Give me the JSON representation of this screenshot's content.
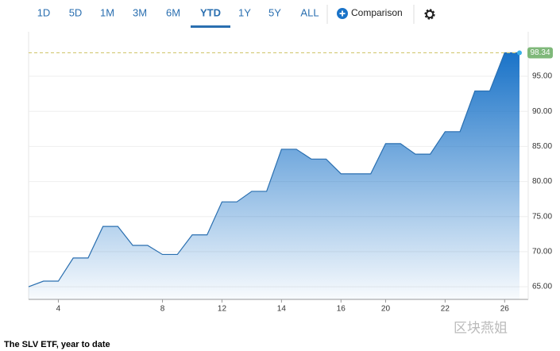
{
  "toolbar": {
    "tabs": [
      "1D",
      "5D",
      "1M",
      "3M",
      "6M",
      "YTD",
      "1Y",
      "5Y",
      "ALL"
    ],
    "active_tab": "YTD",
    "comparison": "Comparison"
  },
  "chart_data": {
    "type": "area",
    "categories": [
      null,
      null,
      "4",
      null,
      null,
      null,
      null,
      null,
      null,
      "8",
      null,
      null,
      null,
      "12",
      null,
      null,
      null,
      "14",
      null,
      null,
      null,
      "16",
      null,
      null,
      "20",
      null,
      null,
      null,
      "22",
      null,
      null,
      null,
      "26",
      null
    ],
    "values": [
      65.0,
      65.8,
      65.8,
      69.1,
      69.1,
      73.6,
      73.6,
      70.9,
      70.9,
      69.6,
      69.6,
      72.4,
      72.4,
      77.1,
      77.1,
      78.6,
      78.6,
      84.6,
      84.6,
      83.2,
      83.2,
      81.1,
      81.1,
      81.1,
      85.4,
      85.4,
      83.9,
      83.9,
      87.1,
      87.1,
      92.9,
      92.9,
      98.34,
      98.34
    ],
    "color": "#2a6fb0",
    "ylim": [
      63.2,
      102.7
    ],
    "yticks": [
      {
        "value": 65,
        "label": "65.00"
      },
      {
        "value": 70,
        "label": "70.00"
      },
      {
        "value": 75,
        "label": "75.00"
      },
      {
        "value": 80,
        "label": "80.00"
      },
      {
        "value": 85,
        "label": "85.00"
      },
      {
        "value": 90,
        "label": "90.00"
      },
      {
        "value": 95,
        "label": "95.00"
      }
    ],
    "grid": true
  },
  "caption": "The SLV ETF, year to date",
  "watermark": "区块燕姐"
}
